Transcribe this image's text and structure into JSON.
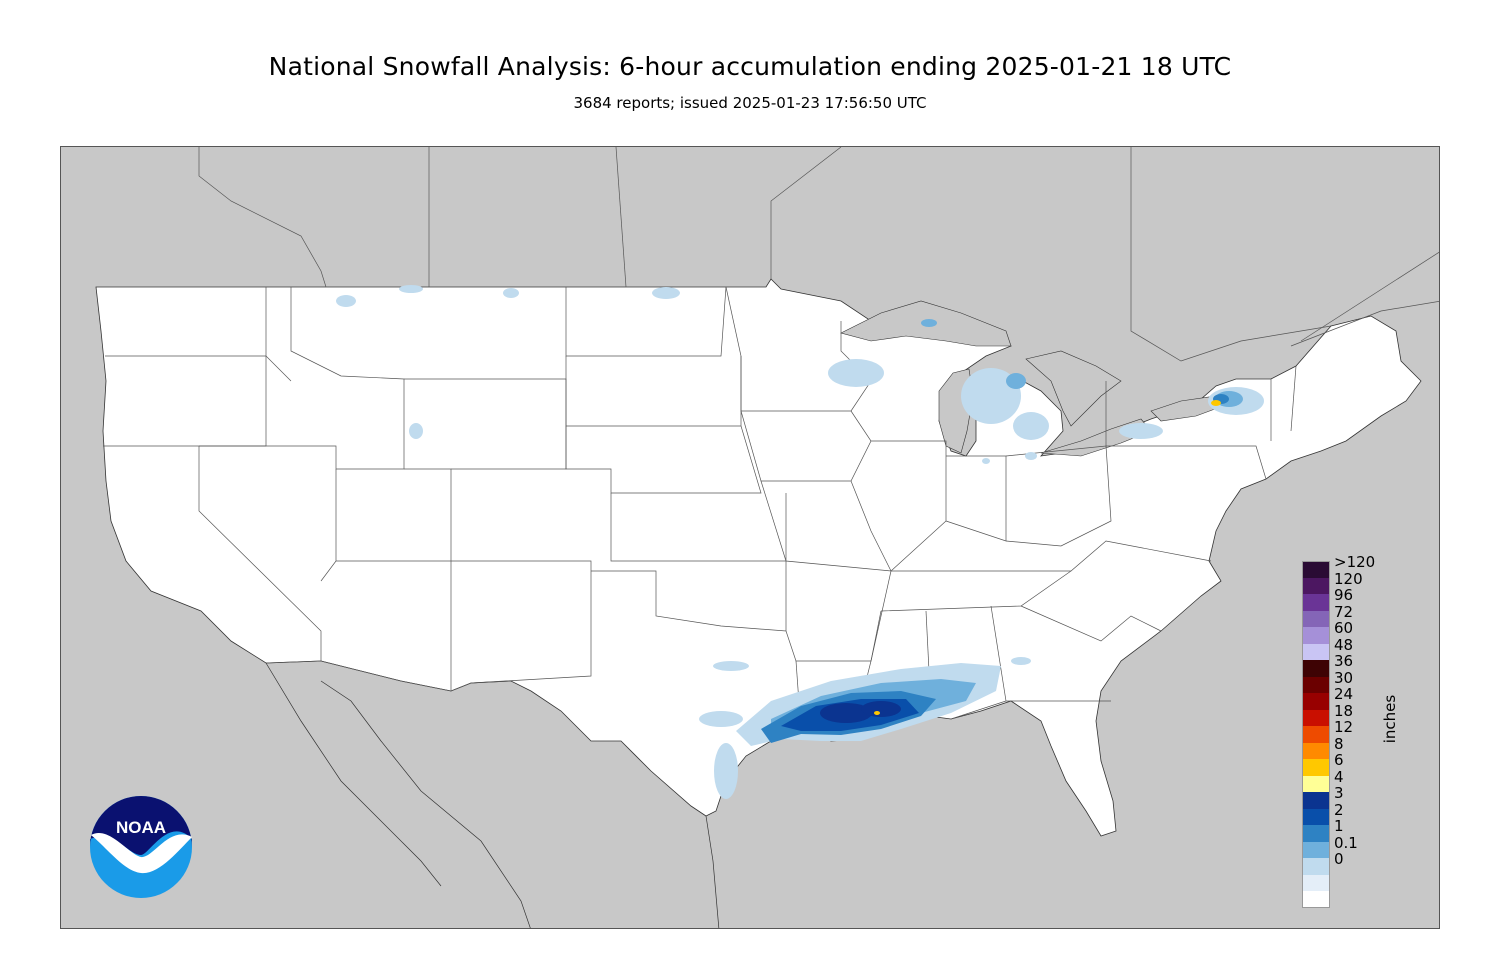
{
  "header": {
    "title": "National Snowfall Analysis: 6-hour accumulation ending 2025-01-21 18 UTC",
    "subtitle": "3684 reports; issued 2025-01-23 17:56:50 UTC"
  },
  "legend": {
    "units": "inches",
    "entries": [
      {
        "label": ">120",
        "color": "#2a0b34"
      },
      {
        "label": "120",
        "color": "#4c1761"
      },
      {
        "label": "96",
        "color": "#6a3496"
      },
      {
        "label": "72",
        "color": "#8465b7"
      },
      {
        "label": "60",
        "color": "#a590d8"
      },
      {
        "label": "48",
        "color": "#c9c5f4"
      },
      {
        "label": "36",
        "color": "#3e0304"
      },
      {
        "label": "30",
        "color": "#6b0000"
      },
      {
        "label": "24",
        "color": "#980000"
      },
      {
        "label": "18",
        "color": "#c90f00"
      },
      {
        "label": "12",
        "color": "#ee4b00"
      },
      {
        "label": "8",
        "color": "#ff8a00"
      },
      {
        "label": "6",
        "color": "#ffc800"
      },
      {
        "label": "4",
        "color": "#ffff96"
      },
      {
        "label": "3",
        "color": "#0b3490"
      },
      {
        "label": "2",
        "color": "#094faa"
      },
      {
        "label": "1",
        "color": "#2e82c3"
      },
      {
        "label": "0.1",
        "color": "#6fb0dc"
      },
      {
        "label": "0",
        "color": "#c0dbee"
      }
    ],
    "extra_bottom_colors": [
      "#e4eef8",
      "#ffffff"
    ]
  },
  "logo": {
    "text": "NOAA",
    "name": "noaa-logo"
  },
  "colors": {
    "land_outside": "#c8c8c8",
    "us_land": "#ffffff",
    "water": "#c8c8c8"
  }
}
